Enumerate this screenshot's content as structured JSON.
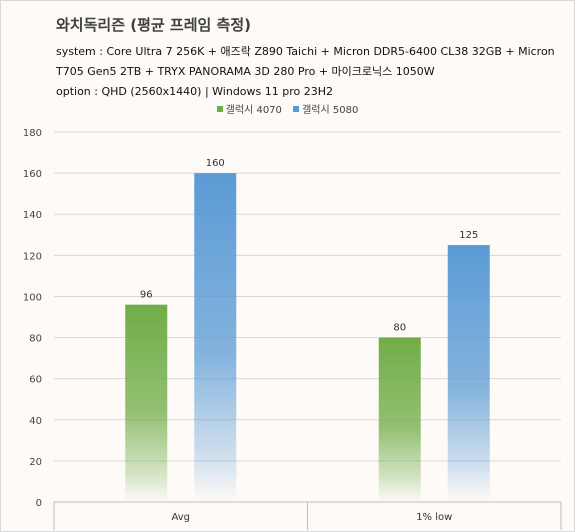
{
  "chart_data": {
    "type": "bar",
    "title": "와치독리즌 (평균 프레임 측정)",
    "subtitle_lines": [
      "system : Core Ultra 7 256K + 애즈락 Z890 Taichi + Micron DDR5-6400 CL38 32GB + Micron",
      "T705 Gen5 2TB + TRYX PANORAMA 3D 280 Pro + 마이크로닉스 1050W",
      "option :  QHD (2560x1440) | Windows 11 pro 23H2"
    ],
    "categories": [
      "Avg",
      "1% low"
    ],
    "series": [
      {
        "name": "갤럭시 4070",
        "values": [
          96,
          80
        ],
        "color": "#70ad47"
      },
      {
        "name": "갤럭시 5080",
        "values": [
          160,
          125
        ],
        "color": "#5b9bd5"
      }
    ],
    "ylim": [
      0,
      180
    ],
    "yticks": [
      0,
      20,
      40,
      60,
      80,
      100,
      120,
      140,
      160,
      180
    ],
    "grid": true,
    "legend_position": "top-center"
  }
}
